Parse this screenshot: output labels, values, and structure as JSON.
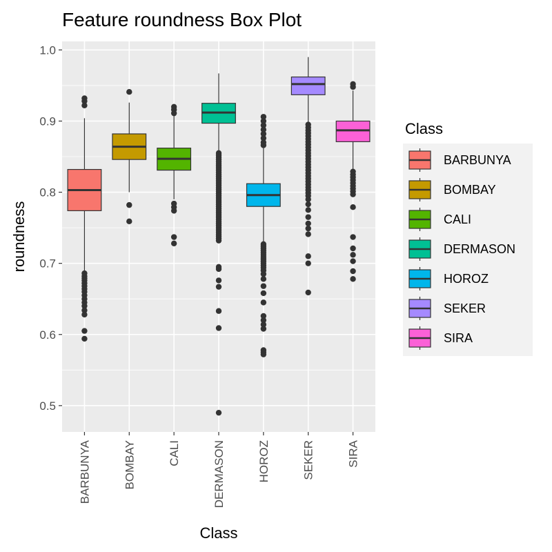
{
  "chart_data": {
    "type": "box",
    "title": "Feature roundness Box Plot",
    "xlabel": "Class",
    "ylabel": "roundness",
    "ylim": [
      0.463,
      1.012
    ],
    "yticks": [
      0.5,
      0.6,
      0.7,
      0.8,
      0.9,
      1.0
    ],
    "ytick_labels": [
      "0.5",
      "0.6",
      "0.7",
      "0.8",
      "0.9",
      "1.0"
    ],
    "grid": true,
    "legend": {
      "title": "Class",
      "position": "right"
    },
    "categories": [
      "BARBUNYA",
      "BOMBAY",
      "CALI",
      "DERMASON",
      "HOROZ",
      "SEKER",
      "SIRA"
    ],
    "series": [
      {
        "name": "BARBUNYA",
        "color": "#F8766D",
        "whisker_low": 0.688,
        "q1": 0.774,
        "median": 0.803,
        "q3": 0.832,
        "whisker_high": 0.904,
        "outliers": [
          0.932,
          0.928,
          0.922,
          0.686,
          0.682,
          0.679,
          0.676,
          0.672,
          0.668,
          0.664,
          0.66,
          0.655,
          0.65,
          0.645,
          0.64,
          0.634,
          0.628,
          0.605,
          0.594
        ]
      },
      {
        "name": "BOMBAY",
        "color": "#C49A00",
        "whisker_low": 0.8,
        "q1": 0.846,
        "median": 0.864,
        "q3": 0.882,
        "whisker_high": 0.926,
        "outliers": [
          0.941,
          0.782,
          0.759
        ]
      },
      {
        "name": "CALI",
        "color": "#53B400",
        "whisker_low": 0.79,
        "q1": 0.831,
        "median": 0.847,
        "q3": 0.862,
        "whisker_high": 0.908,
        "outliers": [
          0.92,
          0.916,
          0.911,
          0.784,
          0.779,
          0.774,
          0.737,
          0.728
        ]
      },
      {
        "name": "DERMASON",
        "color": "#00C094",
        "whisker_low": 0.858,
        "q1": 0.897,
        "median": 0.912,
        "q3": 0.925,
        "whisker_high": 0.967,
        "outliers": [
          0.855,
          0.852,
          0.849,
          0.846,
          0.843,
          0.84,
          0.837,
          0.834,
          0.831,
          0.828,
          0.825,
          0.822,
          0.819,
          0.816,
          0.813,
          0.81,
          0.807,
          0.804,
          0.801,
          0.798,
          0.795,
          0.792,
          0.789,
          0.786,
          0.783,
          0.78,
          0.777,
          0.774,
          0.771,
          0.768,
          0.765,
          0.762,
          0.759,
          0.756,
          0.753,
          0.75,
          0.747,
          0.744,
          0.741,
          0.738,
          0.735,
          0.732,
          0.695,
          0.692,
          0.676,
          0.667,
          0.633,
          0.609,
          0.49
        ]
      },
      {
        "name": "HOROZ",
        "color": "#00B6EB",
        "whisker_low": 0.73,
        "q1": 0.78,
        "median": 0.796,
        "q3": 0.812,
        "whisker_high": 0.862,
        "outliers": [
          0.906,
          0.9,
          0.894,
          0.888,
          0.882,
          0.876,
          0.87,
          0.866,
          0.727,
          0.724,
          0.721,
          0.718,
          0.715,
          0.712,
          0.709,
          0.706,
          0.703,
          0.7,
          0.697,
          0.694,
          0.69,
          0.685,
          0.678,
          0.668,
          0.658,
          0.645,
          0.626,
          0.62,
          0.614,
          0.608,
          0.578,
          0.575,
          0.572
        ]
      },
      {
        "name": "SEKER",
        "color": "#A58AFF",
        "whisker_low": 0.898,
        "q1": 0.937,
        "median": 0.952,
        "q3": 0.962,
        "whisker_high": 0.99,
        "outliers": [
          0.895,
          0.891,
          0.887,
          0.883,
          0.879,
          0.875,
          0.871,
          0.867,
          0.863,
          0.859,
          0.855,
          0.851,
          0.847,
          0.843,
          0.839,
          0.835,
          0.831,
          0.827,
          0.823,
          0.819,
          0.815,
          0.811,
          0.807,
          0.803,
          0.799,
          0.795,
          0.79,
          0.783,
          0.775,
          0.765,
          0.756,
          0.749,
          0.741,
          0.71,
          0.7,
          0.659
        ]
      },
      {
        "name": "SIRA",
        "color": "#FB61D7",
        "whisker_low": 0.833,
        "q1": 0.871,
        "median": 0.887,
        "q3": 0.9,
        "whisker_high": 0.943,
        "outliers": [
          0.952,
          0.948,
          0.829,
          0.825,
          0.821,
          0.817,
          0.813,
          0.809,
          0.805,
          0.801,
          0.797,
          0.779,
          0.737,
          0.721,
          0.712,
          0.703,
          0.689,
          0.678
        ]
      }
    ]
  }
}
